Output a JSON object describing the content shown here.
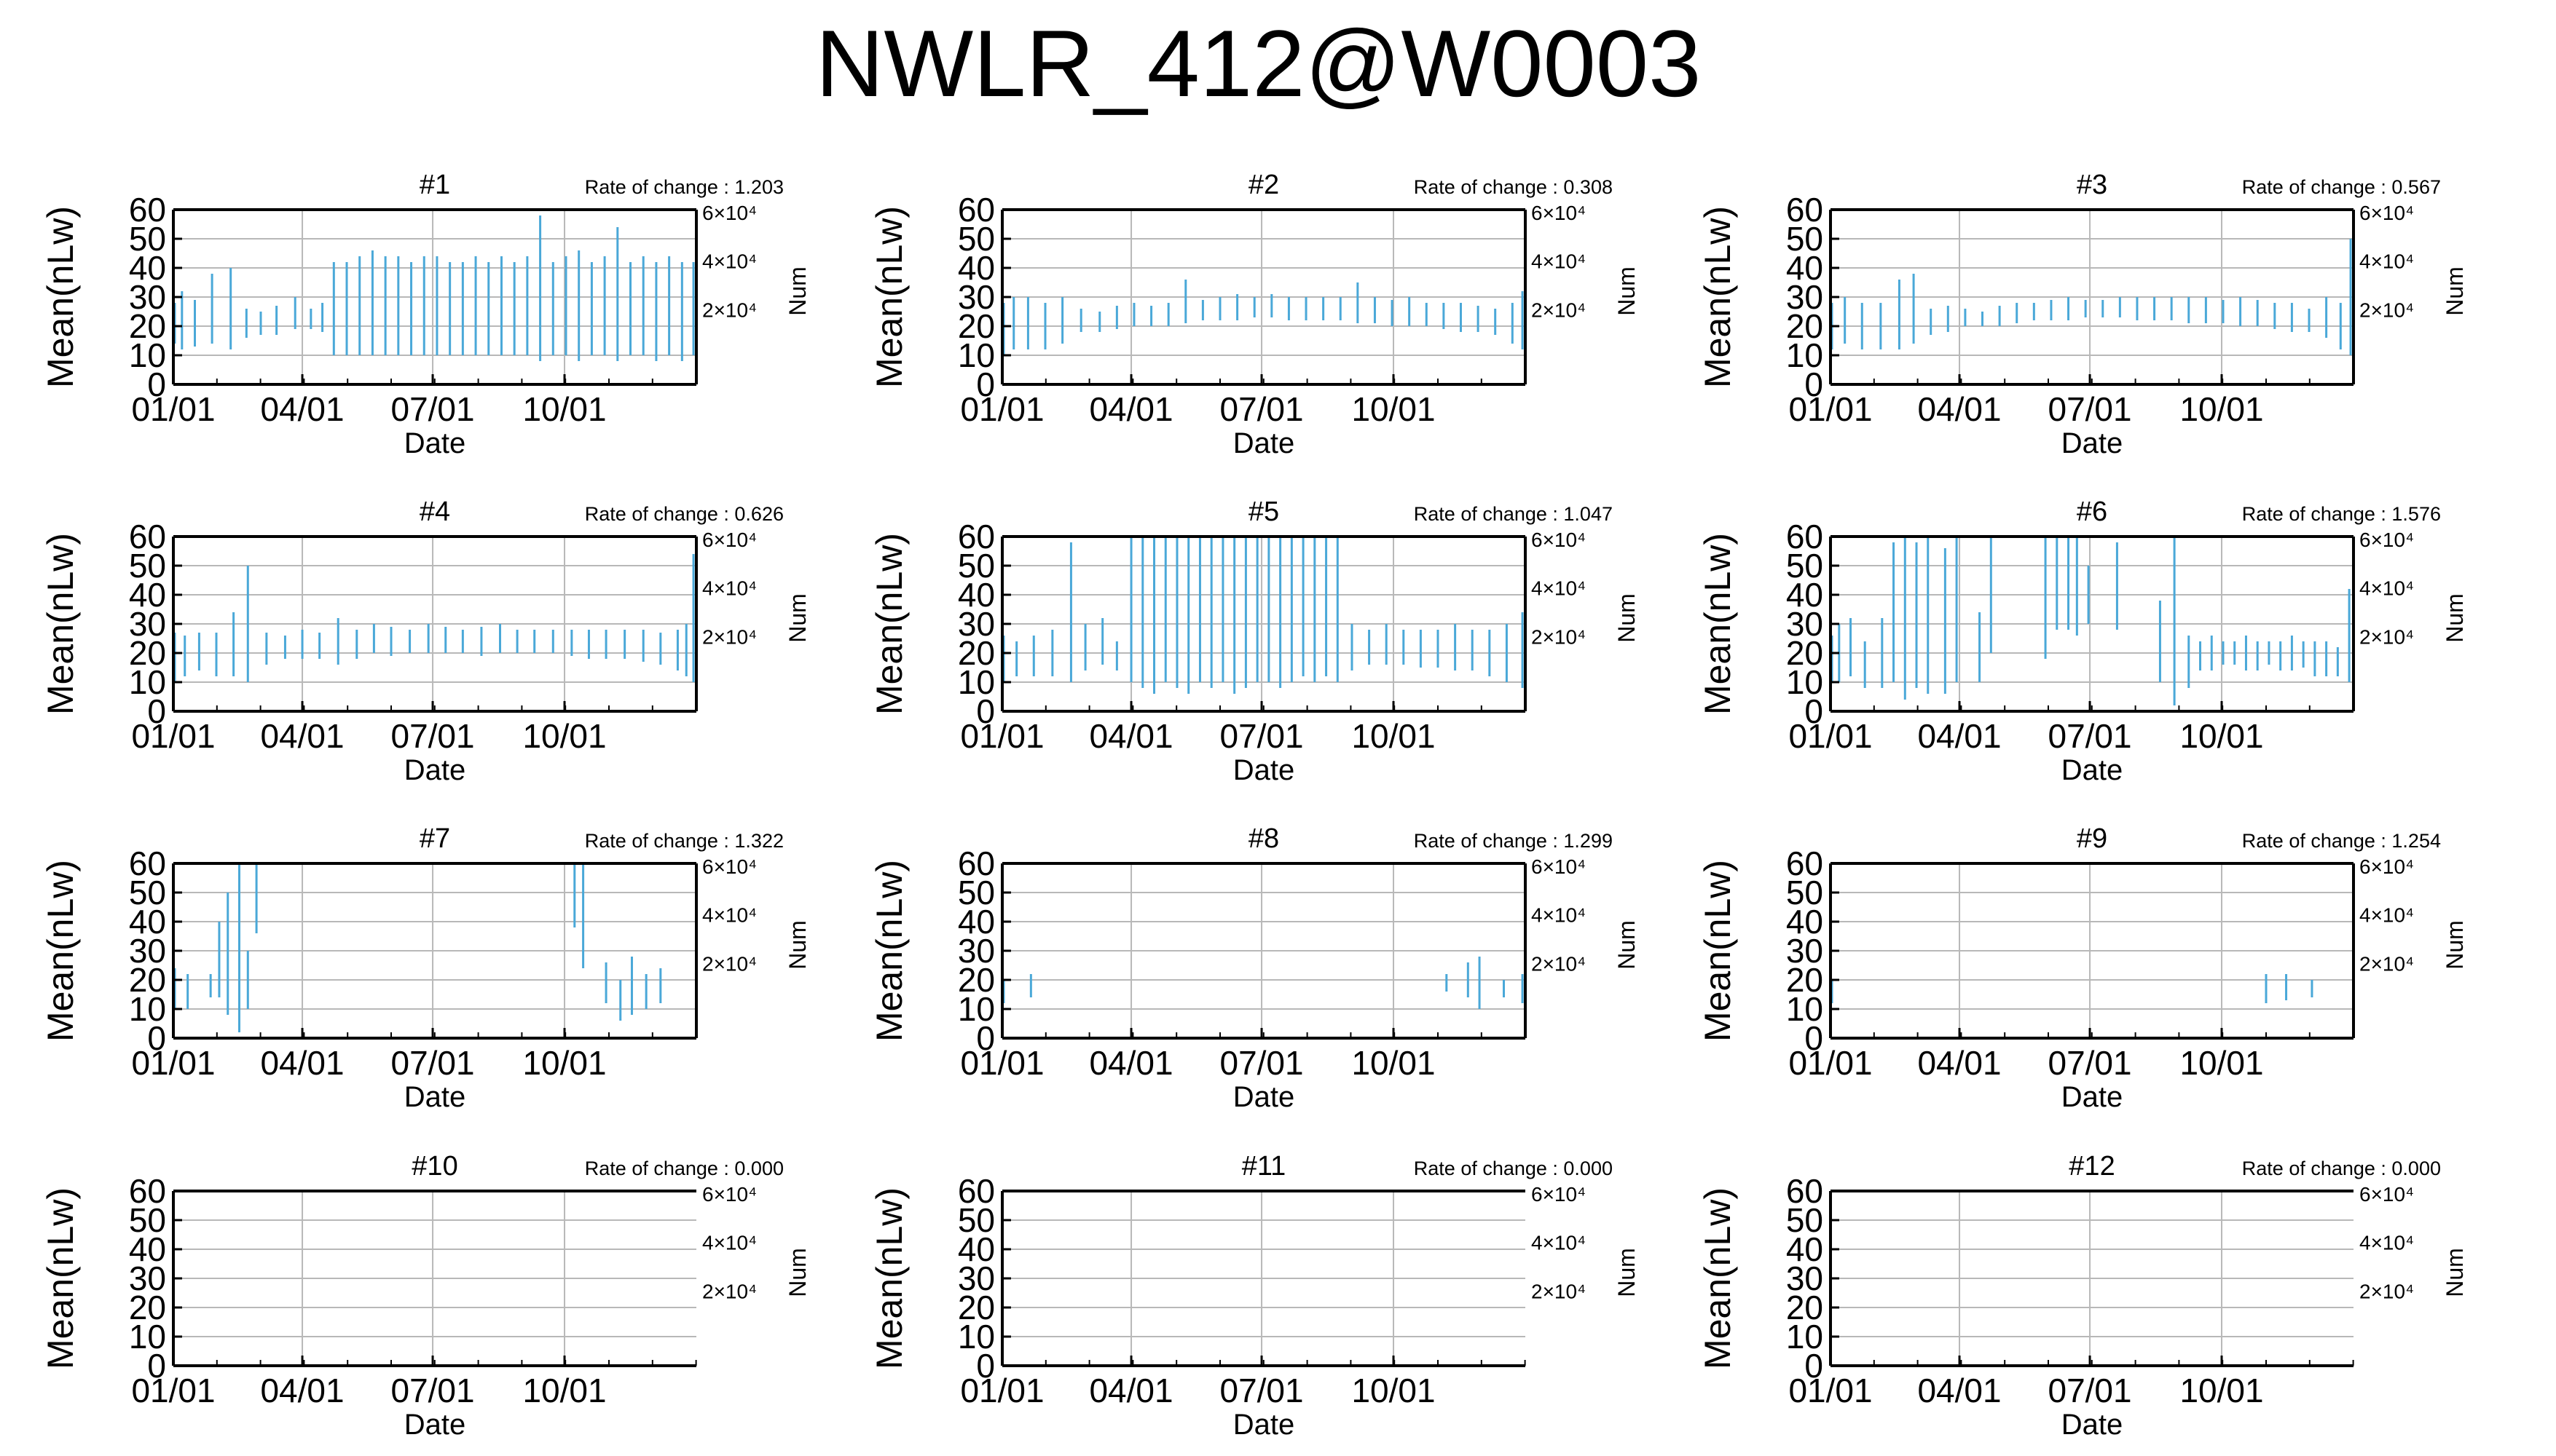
{
  "figure_title": "NWLR_412@W0003",
  "colors": {
    "bar": "#4aa8d8",
    "grid": "#b8b8b8",
    "axis": "#000000"
  },
  "chart_data": [
    {
      "type": "bar",
      "title": "#1",
      "rate_label": "Rate of change : 1.203",
      "xlabel": "Date",
      "ylabel": "Mean(nLw)",
      "y2label": "Num",
      "xticks": [
        "01/01",
        "04/01",
        "07/01",
        "10/01"
      ],
      "y2ticks": [
        "2×10⁴",
        "4×10⁴",
        "6×10⁴"
      ],
      "ylim": [
        0,
        60
      ],
      "yticks": [
        0,
        10,
        20,
        30,
        40,
        50,
        60
      ],
      "grid": true,
      "series": [
        {
          "x": [
            1,
            6,
            15,
            27,
            40,
            51,
            61,
            72,
            85,
            96,
            104,
            112,
            121,
            130,
            139,
            148,
            157,
            166,
            175,
            184,
            193,
            202,
            211,
            220,
            229,
            238,
            247,
            256,
            265,
            274,
            283,
            292,
            301,
            310,
            319,
            328,
            337,
            346,
            355,
            363
          ],
          "low": [
            14,
            12,
            13,
            14,
            12,
            16,
            17,
            17,
            19,
            19,
            18,
            10,
            10,
            10,
            10,
            10,
            10,
            10,
            10,
            10,
            10,
            10,
            10,
            10,
            10,
            10,
            10,
            8,
            10,
            10,
            8,
            10,
            10,
            8,
            10,
            10,
            8,
            10,
            8,
            10
          ],
          "high": [
            28,
            32,
            29,
            38,
            40,
            26,
            25,
            27,
            30,
            26,
            28,
            42,
            42,
            44,
            46,
            44,
            44,
            42,
            44,
            44,
            42,
            42,
            44,
            42,
            44,
            42,
            44,
            58,
            42,
            44,
            46,
            42,
            44,
            54,
            42,
            44,
            42,
            44,
            42,
            42
          ]
        }
      ]
    },
    {
      "type": "bar",
      "title": "#2",
      "rate_label": "Rate of change : 0.308",
      "xlabel": "Date",
      "ylabel": "Mean(nLw)",
      "y2label": "Num",
      "xticks": [
        "01/01",
        "04/01",
        "07/01",
        "10/01"
      ],
      "y2ticks": [
        "2×10⁴",
        "4×10⁴",
        "6×10⁴"
      ],
      "ylim": [
        0,
        60
      ],
      "yticks": [
        0,
        10,
        20,
        30,
        40,
        50,
        60
      ],
      "grid": true,
      "series": [
        {
          "x": [
            1,
            8,
            18,
            30,
            42,
            55,
            68,
            80,
            92,
            104,
            116,
            128,
            140,
            152,
            164,
            176,
            188,
            200,
            212,
            224,
            236,
            248,
            260,
            272,
            284,
            296,
            308,
            320,
            332,
            344,
            356,
            363
          ],
          "low": [
            10,
            12,
            12,
            12,
            14,
            18,
            18,
            19,
            20,
            20,
            20,
            21,
            22,
            22,
            22,
            23,
            23,
            22,
            22,
            22,
            22,
            21,
            21,
            20,
            20,
            20,
            19,
            18,
            18,
            17,
            14,
            12
          ],
          "high": [
            28,
            30,
            30,
            28,
            30,
            26,
            25,
            27,
            28,
            27,
            28,
            36,
            29,
            30,
            31,
            30,
            31,
            30,
            30,
            30,
            30,
            35,
            30,
            29,
            30,
            28,
            28,
            28,
            27,
            26,
            28,
            32
          ]
        }
      ]
    },
    {
      "type": "bar",
      "title": "#3",
      "rate_label": "Rate of change : 0.567",
      "xlabel": "Date",
      "ylabel": "Mean(nLw)",
      "y2label": "Num",
      "xticks": [
        "01/01",
        "04/01",
        "07/01",
        "10/01"
      ],
      "y2ticks": [
        "2×10⁴",
        "4×10⁴",
        "6×10⁴"
      ],
      "ylim": [
        0,
        60
      ],
      "yticks": [
        0,
        10,
        20,
        30,
        40,
        50,
        60
      ],
      "grid": true,
      "series": [
        {
          "x": [
            1,
            10,
            22,
            35,
            48,
            58,
            70,
            82,
            94,
            106,
            118,
            130,
            142,
            154,
            166,
            178,
            190,
            202,
            214,
            226,
            238,
            250,
            262,
            274,
            286,
            298,
            310,
            322,
            334,
            346,
            356,
            363
          ],
          "low": [
            12,
            14,
            12,
            12,
            12,
            14,
            17,
            18,
            20,
            20,
            20,
            21,
            22,
            22,
            22,
            23,
            23,
            23,
            22,
            22,
            22,
            21,
            21,
            21,
            20,
            20,
            19,
            18,
            18,
            16,
            12,
            10
          ],
          "high": [
            28,
            30,
            28,
            28,
            36,
            38,
            26,
            27,
            26,
            25,
            27,
            28,
            28,
            29,
            30,
            29,
            29,
            30,
            30,
            30,
            30,
            30,
            30,
            29,
            30,
            29,
            28,
            28,
            26,
            30,
            28,
            50
          ]
        }
      ]
    },
    {
      "type": "bar",
      "title": "#4",
      "rate_label": "Rate of change : 0.626",
      "xlabel": "Date",
      "ylabel": "Mean(nLw)",
      "y2label": "Num",
      "xticks": [
        "01/01",
        "04/01",
        "07/01",
        "10/01"
      ],
      "y2ticks": [
        "2×10⁴",
        "4×10⁴",
        "6×10⁴"
      ],
      "ylim": [
        0,
        60
      ],
      "yticks": [
        0,
        10,
        20,
        30,
        40,
        50,
        60
      ],
      "grid": true,
      "series": [
        {
          "x": [
            1,
            8,
            18,
            30,
            42,
            52,
            65,
            78,
            90,
            102,
            115,
            128,
            140,
            152,
            165,
            178,
            190,
            202,
            215,
            228,
            240,
            252,
            265,
            278,
            290,
            302,
            315,
            328,
            340,
            352,
            358,
            363
          ],
          "low": [
            10,
            12,
            14,
            12,
            12,
            10,
            16,
            18,
            18,
            18,
            16,
            18,
            20,
            19,
            20,
            20,
            20,
            20,
            19,
            20,
            20,
            20,
            20,
            19,
            18,
            18,
            18,
            17,
            16,
            14,
            12,
            10
          ],
          "high": [
            27,
            26,
            27,
            27,
            34,
            50,
            27,
            26,
            28,
            27,
            32,
            28,
            30,
            29,
            28,
            30,
            29,
            28,
            29,
            30,
            28,
            28,
            28,
            28,
            28,
            28,
            28,
            28,
            27,
            28,
            30,
            54
          ]
        }
      ]
    },
    {
      "type": "bar",
      "title": "#5",
      "rate_label": "Rate of change : 1.047",
      "xlabel": "Date",
      "ylabel": "Mean(nLw)",
      "y2label": "Num",
      "xticks": [
        "01/01",
        "04/01",
        "07/01",
        "10/01"
      ],
      "y2ticks": [
        "2×10⁴",
        "4×10⁴",
        "6×10⁴"
      ],
      "ylim": [
        0,
        60
      ],
      "yticks": [
        0,
        10,
        20,
        30,
        40,
        50,
        60
      ],
      "grid": true,
      "series": [
        {
          "x": [
            1,
            10,
            22,
            35,
            48,
            58,
            70,
            80,
            90,
            98,
            106,
            114,
            122,
            130,
            138,
            146,
            154,
            162,
            170,
            178,
            186,
            194,
            202,
            210,
            218,
            226,
            234,
            244,
            256,
            268,
            280,
            292,
            304,
            316,
            328,
            340,
            352,
            363
          ],
          "low": [
            10,
            12,
            12,
            12,
            10,
            14,
            16,
            14,
            10,
            8,
            6,
            10,
            8,
            6,
            10,
            8,
            10,
            6,
            8,
            10,
            10,
            8,
            10,
            12,
            10,
            12,
            10,
            14,
            16,
            16,
            16,
            15,
            15,
            14,
            14,
            12,
            10,
            8
          ],
          "high": [
            26,
            24,
            26,
            28,
            58,
            30,
            32,
            24,
            60,
            60,
            60,
            60,
            60,
            60,
            60,
            60,
            60,
            60,
            60,
            60,
            60,
            60,
            60,
            60,
            60,
            60,
            60,
            30,
            28,
            30,
            28,
            28,
            28,
            30,
            28,
            28,
            30,
            34
          ]
        }
      ]
    },
    {
      "type": "bar",
      "title": "#6",
      "rate_label": "Rate of change : 1.576",
      "xlabel": "Date",
      "ylabel": "Mean(nLw)",
      "y2label": "Num",
      "xticks": [
        "01/01",
        "04/01",
        "07/01",
        "10/01"
      ],
      "y2ticks": [
        "2×10⁴",
        "4×10⁴",
        "6×10⁴"
      ],
      "ylim": [
        0,
        60
      ],
      "yticks": [
        0,
        10,
        20,
        30,
        40,
        50,
        60
      ],
      "grid": true,
      "series": [
        {
          "x": [
            1,
            6,
            14,
            24,
            36,
            44,
            52,
            60,
            68,
            80,
            88,
            104,
            112,
            150,
            158,
            166,
            172,
            180,
            200,
            230,
            240,
            250,
            258,
            266,
            274,
            282,
            290,
            298,
            306,
            314,
            322,
            330,
            338,
            346,
            354,
            362
          ],
          "low": [
            10,
            10,
            12,
            8,
            8,
            10,
            4,
            8,
            6,
            6,
            10,
            10,
            20,
            18,
            28,
            28,
            26,
            30,
            28,
            10,
            2,
            8,
            14,
            14,
            16,
            16,
            14,
            14,
            16,
            14,
            14,
            15,
            12,
            12,
            12,
            10
          ],
          "high": [
            26,
            30,
            32,
            24,
            32,
            58,
            60,
            58,
            60,
            56,
            60,
            34,
            60,
            60,
            60,
            60,
            60,
            50,
            58,
            38,
            60,
            26,
            24,
            26,
            24,
            24,
            26,
            24,
            24,
            24,
            26,
            24,
            24,
            24,
            22,
            42
          ]
        }
      ]
    },
    {
      "type": "bar",
      "title": "#7",
      "rate_label": "Rate of change : 1.322",
      "xlabel": "Date",
      "ylabel": "Mean(nLw)",
      "y2label": "Num",
      "xticks": [
        "01/01",
        "04/01",
        "07/01",
        "10/01"
      ],
      "y2ticks": [
        "2×10⁴",
        "4×10⁴",
        "6×10⁴"
      ],
      "ylim": [
        0,
        60
      ],
      "yticks": [
        0,
        10,
        20,
        30,
        40,
        50,
        60
      ],
      "grid": true,
      "series": [
        {
          "x": [
            1,
            10,
            26,
            32,
            38,
            46,
            52,
            58,
            280,
            286,
            302,
            312,
            320,
            330,
            340
          ],
          "low": [
            10,
            10,
            14,
            14,
            8,
            2,
            10,
            36,
            38,
            24,
            12,
            6,
            8,
            10,
            12
          ],
          "high": [
            24,
            22,
            22,
            40,
            50,
            60,
            30,
            60,
            60,
            60,
            26,
            20,
            28,
            22,
            24
          ]
        }
      ]
    },
    {
      "type": "bar",
      "title": "#8",
      "rate_label": "Rate of change : 1.299",
      "xlabel": "Date",
      "ylabel": "Mean(nLw)",
      "y2label": "Num",
      "xticks": [
        "01/01",
        "04/01",
        "07/01",
        "10/01"
      ],
      "y2ticks": [
        "2×10⁴",
        "4×10⁴",
        "6×10⁴"
      ],
      "ylim": [
        0,
        60
      ],
      "yticks": [
        0,
        10,
        20,
        30,
        40,
        50,
        60
      ],
      "grid": true,
      "series": [
        {
          "x": [
            1,
            20,
            310,
            325,
            333,
            350,
            363
          ],
          "low": [
            12,
            14,
            16,
            14,
            10,
            14,
            12
          ],
          "high": [
            20,
            22,
            22,
            26,
            28,
            20,
            22
          ]
        }
      ]
    },
    {
      "type": "bar",
      "title": "#9",
      "rate_label": "Rate of change : 1.254",
      "xlabel": "Date",
      "ylabel": "Mean(nLw)",
      "y2label": "Num",
      "xticks": [
        "01/01",
        "04/01",
        "07/01",
        "10/01"
      ],
      "y2ticks": [
        "2×10⁴",
        "4×10⁴",
        "6×10⁴"
      ],
      "ylim": [
        0,
        60
      ],
      "yticks": [
        0,
        10,
        20,
        30,
        40,
        50,
        60
      ],
      "grid": true,
      "series": [
        {
          "x": [
            1,
            304,
            318,
            336
          ],
          "low": [
            12,
            12,
            13,
            14
          ],
          "high": [
            20,
            22,
            22,
            20
          ]
        }
      ]
    },
    {
      "type": "bar",
      "title": "#10",
      "rate_label": "Rate of change : 0.000",
      "xlabel": "Date",
      "ylabel": "Mean(nLw)",
      "y2label": "Num",
      "xticks": [
        "01/01",
        "04/01",
        "07/01",
        "10/01"
      ],
      "y2ticks": [
        "2×10⁴",
        "4×10⁴",
        "6×10⁴"
      ],
      "ylim": [
        0,
        60
      ],
      "yticks": [
        0,
        10,
        20,
        30,
        40,
        50,
        60
      ],
      "grid": true,
      "series": []
    },
    {
      "type": "bar",
      "title": "#11",
      "rate_label": "Rate of change : 0.000",
      "xlabel": "Date",
      "ylabel": "Mean(nLw)",
      "y2label": "Num",
      "xticks": [
        "01/01",
        "04/01",
        "07/01",
        "10/01"
      ],
      "y2ticks": [
        "2×10⁴",
        "4×10⁴",
        "6×10⁴"
      ],
      "ylim": [
        0,
        60
      ],
      "yticks": [
        0,
        10,
        20,
        30,
        40,
        50,
        60
      ],
      "grid": true,
      "series": []
    },
    {
      "type": "bar",
      "title": "#12",
      "rate_label": "Rate of change : 0.000",
      "xlabel": "Date",
      "ylabel": "Mean(nLw)",
      "y2label": "Num",
      "xticks": [
        "01/01",
        "04/01",
        "07/01",
        "10/01"
      ],
      "y2ticks": [
        "2×10⁴",
        "4×10⁴",
        "6×10⁴"
      ],
      "ylim": [
        0,
        60
      ],
      "yticks": [
        0,
        10,
        20,
        30,
        40,
        50,
        60
      ],
      "grid": true,
      "series": []
    }
  ]
}
